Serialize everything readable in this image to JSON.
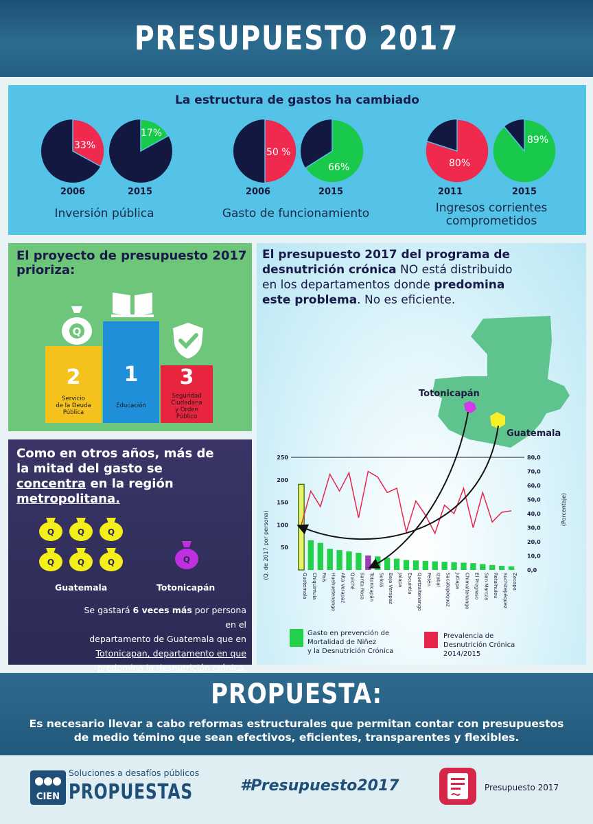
{
  "header": {
    "title": "PRESUPUESTO 2017"
  },
  "structure": {
    "title": "La estructura de gastos ha cambiado",
    "groups": [
      {
        "label": "Inversión pública",
        "pies": [
          {
            "year": "2006",
            "value": 33,
            "label": "33%",
            "color": "#f0294f"
          },
          {
            "year": "2015",
            "value": 17,
            "label": "17%",
            "color": "#19c94c"
          }
        ]
      },
      {
        "label": "Gasto de funcionamiento",
        "pies": [
          {
            "year": "2006",
            "value": 50,
            "label": "50 %",
            "color": "#f0294f"
          },
          {
            "year": "2015",
            "value": 66,
            "label": "66%",
            "color": "#19c94c"
          }
        ]
      },
      {
        "label_line1": "Ingresos corrientes",
        "label_line2": "comprometidos",
        "pies": [
          {
            "year": "2011",
            "value": 80,
            "label": "80%",
            "color": "#f0294f"
          },
          {
            "year": "2015",
            "value": 89,
            "label": "89%",
            "color": "#19c94c"
          }
        ]
      }
    ]
  },
  "priorities": {
    "title": "El proyecto de presupuesto 2017 prioriza:",
    "items": [
      {
        "rank": "2",
        "label_line1": "Servicio",
        "label_line2": "de la Deuda",
        "label_line3": "Pública",
        "color": "#f4c11d",
        "icon": "money-bag-icon"
      },
      {
        "rank": "1",
        "label_line1": "Educación",
        "color": "#1e8fd8",
        "icon": "book-icon"
      },
      {
        "rank": "3",
        "label_line1": "Seguridad",
        "label_line2": "Ciudadana",
        "label_line3": "y Orden",
        "label_line4": "Público",
        "color": "#e8253f",
        "icon": "shield-check-icon"
      }
    ]
  },
  "metro": {
    "title_line1": "Como en otros años, más de",
    "title_line2": "la mitad del gasto se",
    "title_line3a": "concentra",
    "title_line3b": " en la región",
    "title_line4": "metropolitana.",
    "bag_symbol": "Q",
    "guatemala_label": "Guatemala",
    "totonicapan_label": "Totonicapán",
    "note_line1a": "Se gastará ",
    "note_line1b": "6 veces más",
    "note_line1c": " por persona en el",
    "note_line2": "departamento de Guatemala que en",
    "note_line3": "Totonicapan, departamento en que",
    "note_line4": "predomina la desnutrición crónica."
  },
  "malnutrition": {
    "heading_p1": "El presupuesto 2017 del programa de",
    "heading_b1": "desnutrición crónica",
    "heading_p2": " NO está distribuido",
    "heading_p3": "en los departamentos donde ",
    "heading_b2": "predomina",
    "heading_b3": "este problema",
    "heading_p4": ". No es eficiente.",
    "map_label_totonicapan": "Totonicapán",
    "map_label_guatemala": "Guatemala",
    "legend_spending_line1": "Gasto en prevención de",
    "legend_spending_line2": "Mortalidad de Niñez",
    "legend_spending_line3": "y la Desnutrición Crónica",
    "legend_prevalence_line1": "Prevalencia de",
    "legend_prevalence_line2": "Desnutrición Crónica",
    "legend_prevalence_line3": "2014/2015"
  },
  "chart_data": {
    "type": "bar+line",
    "ylabel": "(Q. de 2017 por persona)",
    "y2label": "(Porcentaje)",
    "ylim": [
      0,
      250
    ],
    "y2lim": [
      0,
      80
    ],
    "yticks": [
      "250",
      "200",
      "150",
      "100",
      "50"
    ],
    "y2ticks": [
      "80,0",
      "70,0",
      "60,0",
      "50,0",
      "40,0",
      "30,0",
      "20,0",
      "10,0",
      "0,0"
    ],
    "categories": [
      "Guatemala",
      "Chiquimula",
      "País",
      "Huehuetenango",
      "Alta Verapaz",
      "Quiché",
      "Santa Rosa",
      "Totonicapán",
      "Sololá",
      "Baja Verapaz",
      "Jalapa",
      "Escuintla",
      "Quetzaltenango",
      "Petén",
      "Izabal",
      "Sacatepéquez",
      "Jutiapa",
      "Chimaltenango",
      "El Progreso",
      "San Marcos",
      "Retalhuleu",
      "Suchitepéquez",
      "Zacapa"
    ],
    "series": [
      {
        "values": [
          190,
          66,
          60,
          47,
          44,
          41,
          38,
          32,
          30,
          27,
          25,
          22,
          21,
          20,
          19,
          18,
          17,
          16,
          15,
          13,
          11,
          9,
          8
        ]
      },
      {
        "values": [
          32,
          56,
          45,
          68,
          56,
          69,
          37,
          70,
          66,
          55,
          58,
          27,
          49,
          39,
          26,
          46,
          40,
          58,
          30,
          55,
          34,
          41,
          42
        ]
      }
    ],
    "bar_color": "#23d04a",
    "highlight_guatemala": "#e8f26a",
    "highlight_totonicapan": "#9b3bb5",
    "line_color": "#e8254a"
  },
  "proposal": {
    "title": "PROPUESTA:",
    "text_line1": "Es necesario llevar a cabo reformas estructurales que permitan contar con presupuestos",
    "text_line2": "de medio témino que sean efectivos, eficientes, transparentes y flexibles."
  },
  "footer": {
    "tagline": "Soluciones a desafíos públicos",
    "brand": "PROPUESTAS",
    "logo_text": "CIEN",
    "hashtag": "#Presupuesto2017",
    "doc_label": "Presupuesto 2017"
  }
}
